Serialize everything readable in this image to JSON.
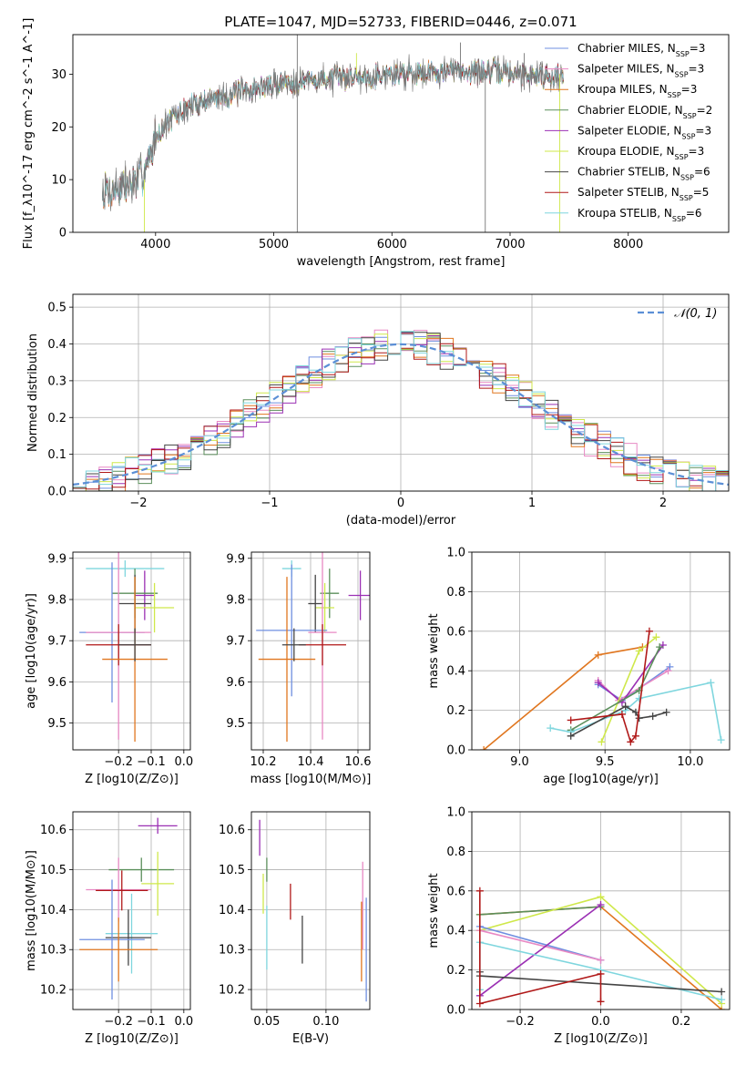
{
  "title": "PLATE=1047, MJD=52733, FIBERID=0446, z=0.071",
  "colors": {
    "Chabrier MILES": "#6f8fe0",
    "Salpeter MILES": "#e889c4",
    "Kroupa MILES": "#e0761f",
    "Chabrier ELODIE": "#5b8f5b",
    "Salpeter ELODIE": "#9b30b4",
    "Kroupa ELODIE": "#cfe84a",
    "Chabrier STELIB": "#444444",
    "Salpeter STELIB": "#b01818",
    "Kroupa STELIB": "#7fd6de",
    "gaussian": "#5b8fd6"
  },
  "chart_data": [
    {
      "id": "spectrum",
      "type": "line",
      "xlabel": "wavelength [Angstrom, rest frame]",
      "ylabel": "Flux [f_λ10^-17 erg cm^-2 s^-1 A^-1]",
      "xlim": [
        3300,
        8850
      ],
      "ylim": [
        0,
        37.5
      ],
      "xticks": [
        4000,
        5000,
        6000,
        7000,
        8000
      ],
      "yticks": [
        0,
        10,
        20,
        30
      ],
      "grid": false,
      "legend_position": "top-right",
      "legend": [
        {
          "model": "Chabrier MILES",
          "nssp": "3"
        },
        {
          "model": "Salpeter MILES",
          "nssp": "3"
        },
        {
          "model": "Kroupa MILES",
          "nssp": "3"
        },
        {
          "model": "Chabrier ELODIE",
          "nssp": "2"
        },
        {
          "model": "Salpeter ELODIE",
          "nssp": "3"
        },
        {
          "model": "Kroupa ELODIE",
          "nssp": "3"
        },
        {
          "model": "Chabrier STELIB",
          "nssp": "6"
        },
        {
          "model": "Salpeter STELIB",
          "nssp": "5"
        },
        {
          "model": "Kroupa STELIB",
          "nssp": "6"
        }
      ],
      "continuum": {
        "x": [
          3550,
          3700,
          3850,
          3950,
          4000,
          4100,
          4300,
          4500,
          4700,
          4900,
          5100,
          5400,
          5700,
          6000,
          6300,
          6600,
          6900,
          7200,
          7450
        ],
        "y": [
          7.5,
          8.5,
          9.5,
          14,
          18,
          21,
          24,
          25.5,
          26.5,
          27.5,
          28.5,
          29,
          29.5,
          30,
          30.5,
          30.5,
          30.5,
          30,
          29.5
        ]
      }
    },
    {
      "id": "residuals",
      "type": "line",
      "xlabel": "(data-model)/error",
      "ylabel": "Normed distribution",
      "xlim": [
        -2.5,
        2.5
      ],
      "ylim": [
        0,
        0.535
      ],
      "xticks": [
        -2,
        -1,
        0,
        1,
        2
      ],
      "yticks": [
        0.0,
        0.1,
        0.2,
        0.3,
        0.4,
        0.5
      ],
      "grid": true,
      "legend_position": "top-right",
      "legend": [
        "𝒩(0, 1)"
      ],
      "gaussian": {
        "mean": 0,
        "sigma": 1
      }
    },
    {
      "id": "age-vs-Z",
      "type": "scatter",
      "xlabel": "Z [log10(Z/Z⊙)]",
      "ylabel": "age  [log10(age/yr)]",
      "xlim": [
        -0.34,
        0.02
      ],
      "ylim": [
        9.435,
        9.915
      ],
      "xticks": [
        -0.2,
        -0.1,
        0.0
      ],
      "yticks": [
        9.5,
        9.6,
        9.7,
        9.8,
        9.9
      ],
      "grid": true,
      "points": [
        {
          "model": "Kroupa STELIB",
          "x": -0.18,
          "xerr": 0.12,
          "y": 9.875,
          "yerr": 0.02
        },
        {
          "model": "Salpeter ELODIE",
          "x": -0.12,
          "xerr": 0.03,
          "y": 9.81,
          "yerr": 0.06
        },
        {
          "model": "Chabrier ELODIE",
          "x": -0.15,
          "xerr": 0.07,
          "y": 9.815,
          "yerr": 0.06
        },
        {
          "model": "Kroupa ELODIE",
          "x": -0.09,
          "xerr": 0.06,
          "y": 9.78,
          "yerr": 0.06
        },
        {
          "model": "Chabrier STELIB",
          "x": -0.15,
          "xerr": 0.05,
          "y": 9.79,
          "yerr": 0.07
        },
        {
          "model": "Chabrier MILES",
          "x": -0.22,
          "xerr": 0.1,
          "y": 9.72,
          "yerr": 0.17
        },
        {
          "model": "Salpeter MILES",
          "x": -0.2,
          "xerr": 0.1,
          "y": 9.72,
          "yerr": 0.26
        },
        {
          "model": "Salpeter STELIB",
          "x": -0.2,
          "xerr": 0.1,
          "y": 9.69,
          "yerr": 0.05
        },
        {
          "model": "Kroupa MILES",
          "x": -0.15,
          "xerr": 0.1,
          "y": 9.655,
          "yerr": 0.2
        },
        {
          "model": "Chabrier STELIB",
          "x": -0.15,
          "xerr": 0.05,
          "y": 9.69,
          "yerr": 0.04
        }
      ]
    },
    {
      "id": "age-vs-mass",
      "type": "scatter",
      "xlabel": "mass [log10(M/M⊙)]",
      "ylabel": "",
      "xlim": [
        10.15,
        10.65
      ],
      "ylim": [
        9.435,
        9.915
      ],
      "xticks": [
        10.2,
        10.4,
        10.6
      ],
      "yticks": [
        9.5,
        9.6,
        9.7,
        9.8,
        9.9
      ],
      "grid": true,
      "points": [
        {
          "model": "Kroupa STELIB",
          "x": 10.32,
          "xerr": 0.04,
          "y": 9.875,
          "yerr": 0.02
        },
        {
          "model": "Salpeter ELODIE",
          "x": 10.61,
          "xerr": 0.05,
          "y": 9.81,
          "yerr": 0.06
        },
        {
          "model": "Chabrier ELODIE",
          "x": 10.48,
          "xerr": 0.04,
          "y": 9.815,
          "yerr": 0.06
        },
        {
          "model": "Kroupa ELODIE",
          "x": 10.46,
          "xerr": 0.04,
          "y": 9.78,
          "yerr": 0.06
        },
        {
          "model": "Chabrier STELIB",
          "x": 10.42,
          "xerr": 0.03,
          "y": 9.79,
          "yerr": 0.07
        },
        {
          "model": "Chabrier MILES",
          "x": 10.32,
          "xerr": 0.15,
          "y": 9.725,
          "yerr": 0.16
        },
        {
          "model": "Salpeter MILES",
          "x": 10.45,
          "xerr": 0.06,
          "y": 9.72,
          "yerr": 0.26
        },
        {
          "model": "Salpeter STELIB",
          "x": 10.45,
          "xerr": 0.1,
          "y": 9.69,
          "yerr": 0.05
        },
        {
          "model": "Kroupa MILES",
          "x": 10.3,
          "xerr": 0.12,
          "y": 9.655,
          "yerr": 0.2
        },
        {
          "model": "Chabrier STELIB",
          "x": 10.33,
          "xerr": 0.05,
          "y": 9.69,
          "yerr": 0.04
        }
      ]
    },
    {
      "id": "weight-vs-age",
      "type": "line",
      "xlabel": "age  [log10(age/yr)]",
      "ylabel": "mass weight",
      "xlim": [
        8.72,
        10.23
      ],
      "ylim": [
        0,
        1
      ],
      "xticks": [
        9.0,
        9.5,
        10.0
      ],
      "yticks": [
        0.0,
        0.2,
        0.4,
        0.6,
        0.8,
        1.0
      ],
      "grid": true,
      "series": [
        {
          "model": "Kroupa MILES",
          "x": [
            8.79,
            9.46,
            9.72
          ],
          "y": [
            0.0,
            0.48,
            0.52
          ]
        },
        {
          "model": "Chabrier MILES",
          "x": [
            9.46,
            9.6,
            9.88
          ],
          "y": [
            0.33,
            0.25,
            0.42
          ]
        },
        {
          "model": "Salpeter MILES",
          "x": [
            9.46,
            9.58,
            9.87
          ],
          "y": [
            0.35,
            0.25,
            0.4
          ]
        },
        {
          "model": "Salpeter ELODIE",
          "x": [
            9.46,
            9.6,
            9.84
          ],
          "y": [
            0.34,
            0.24,
            0.53
          ]
        },
        {
          "model": "Kroupa ELODIE",
          "x": [
            9.48,
            9.7,
            9.8
          ],
          "y": [
            0.04,
            0.5,
            0.57
          ]
        },
        {
          "model": "Chabrier ELODIE",
          "x": [
            9.3,
            9.7,
            9.82
          ],
          "y": [
            0.1,
            0.3,
            0.52
          ]
        },
        {
          "model": "Kroupa STELIB",
          "x": [
            9.18,
            9.3,
            9.62,
            9.7,
            10.12,
            10.18
          ],
          "y": [
            0.11,
            0.09,
            0.2,
            0.26,
            0.34,
            0.05
          ]
        },
        {
          "model": "Chabrier STELIB",
          "x": [
            9.3,
            9.62,
            9.68,
            9.7,
            9.78,
            9.86
          ],
          "y": [
            0.07,
            0.22,
            0.19,
            0.16,
            0.17,
            0.19
          ]
        },
        {
          "model": "Salpeter STELIB",
          "x": [
            9.3,
            9.6,
            9.65,
            9.68,
            9.76
          ],
          "y": [
            0.15,
            0.18,
            0.04,
            0.07,
            0.6
          ]
        }
      ]
    },
    {
      "id": "mass-vs-Z",
      "type": "scatter",
      "xlabel": "Z [log10(Z/Z⊙)]",
      "ylabel": "mass [log10(M/M⊙)]",
      "xlim": [
        -0.34,
        0.02
      ],
      "ylim": [
        10.15,
        10.645
      ],
      "xticks": [
        -0.2,
        -0.1,
        0.0
      ],
      "yticks": [
        10.2,
        10.3,
        10.4,
        10.5,
        10.6
      ],
      "grid": true,
      "points": [
        {
          "model": "Salpeter ELODIE",
          "x": -0.08,
          "xerr": 0.06,
          "y": 10.61,
          "yerr": 0.02
        },
        {
          "model": "Chabrier ELODIE",
          "x": -0.13,
          "xerr": 0.1,
          "y": 10.5,
          "yerr": 0.03
        },
        {
          "model": "Kroupa ELODIE",
          "x": -0.08,
          "xerr": 0.05,
          "y": 10.465,
          "yerr": 0.08
        },
        {
          "model": "Salpeter MILES",
          "x": -0.2,
          "xerr": 0.1,
          "y": 10.45,
          "yerr": 0.08
        },
        {
          "model": "Salpeter STELIB",
          "x": -0.19,
          "xerr": 0.08,
          "y": 10.448,
          "yerr": 0.05
        },
        {
          "model": "Kroupa STELIB",
          "x": -0.16,
          "xerr": 0.08,
          "y": 10.34,
          "yerr": 0.1
        },
        {
          "model": "Chabrier STELIB",
          "x": -0.17,
          "xerr": 0.07,
          "y": 10.33,
          "yerr": 0.07
        },
        {
          "model": "Chabrier MILES",
          "x": -0.22,
          "xerr": 0.1,
          "y": 10.325,
          "yerr": 0.15
        },
        {
          "model": "Kroupa MILES",
          "x": -0.2,
          "xerr": 0.12,
          "y": 10.3,
          "yerr": 0.08
        }
      ]
    },
    {
      "id": "mass-vs-ebv",
      "type": "scatter",
      "xlabel": "E(B-V)",
      "ylabel": "",
      "xlim": [
        0.037,
        0.137
      ],
      "ylim": [
        10.15,
        10.645
      ],
      "xticks": [
        0.05,
        0.1
      ],
      "yticks": [
        10.2,
        10.3,
        10.4,
        10.5,
        10.6
      ],
      "grid": true,
      "points": [
        {
          "model": "Salpeter ELODIE",
          "x": 0.044,
          "y": 10.58,
          "yerr": 0.045
        },
        {
          "model": "Chabrier ELODIE",
          "x": 0.05,
          "y": 10.5,
          "yerr": 0.03
        },
        {
          "model": "Kroupa ELODIE",
          "x": 0.047,
          "y": 10.44,
          "yerr": 0.05
        },
        {
          "model": "Salpeter STELIB",
          "x": 0.07,
          "y": 10.42,
          "yerr": 0.045
        },
        {
          "model": "Kroupa STELIB",
          "x": 0.05,
          "y": 10.33,
          "yerr": 0.08
        },
        {
          "model": "Chabrier STELIB",
          "x": 0.08,
          "y": 10.325,
          "yerr": 0.06
        },
        {
          "model": "Salpeter MILES",
          "x": 0.131,
          "y": 10.41,
          "yerr": 0.11
        },
        {
          "model": "Kroupa MILES",
          "x": 0.13,
          "y": 10.32,
          "yerr": 0.1
        },
        {
          "model": "Chabrier MILES",
          "x": 0.134,
          "y": 10.3,
          "yerr": 0.13
        }
      ]
    },
    {
      "id": "weight-vs-Z",
      "type": "line",
      "xlabel": "Z [log10(Z/Z⊙)]",
      "ylabel": "mass weight",
      "xlim": [
        -0.32,
        0.32
      ],
      "ylim": [
        0,
        1
      ],
      "xticks": [
        -0.2,
        0.0,
        0.2
      ],
      "yticks": [
        0.0,
        0.2,
        0.4,
        0.6,
        0.8,
        1.0
      ],
      "grid": true,
      "series": [
        {
          "model": "Kroupa MILES",
          "x": [
            -0.3,
            0.0,
            0.3
          ],
          "y": [
            0.48,
            0.52,
            0.0
          ]
        },
        {
          "model": "Chabrier ELODIE",
          "x": [
            -0.3,
            0.0
          ],
          "y": [
            0.48,
            0.52
          ]
        },
        {
          "model": "Kroupa ELODIE",
          "x": [
            -0.3,
            0.0,
            0.3
          ],
          "y": [
            0.4,
            0.57,
            0.03
          ]
        },
        {
          "model": "Chabrier MILES",
          "x": [
            -0.3,
            0.0
          ],
          "y": [
            0.42,
            0.25
          ]
        },
        {
          "model": "Salpeter MILES",
          "x": [
            -0.3,
            0.0
          ],
          "y": [
            0.4,
            0.25
          ]
        },
        {
          "model": "Salpeter ELODIE",
          "x": [
            -0.3,
            0.0
          ],
          "y": [
            0.07,
            0.53
          ]
        },
        {
          "model": "Kroupa STELIB",
          "x": [
            -0.3,
            -0.3,
            0.0,
            0.3
          ],
          "y": [
            0.1,
            0.34,
            0.2,
            0.05
          ]
        },
        {
          "model": "Chabrier STELIB",
          "x": [
            -0.3,
            -0.3,
            0.3
          ],
          "y": [
            0.19,
            0.17,
            0.09
          ]
        },
        {
          "model": "Salpeter STELIB",
          "x": [
            -0.3,
            -0.3,
            0.0,
            0.0
          ],
          "y": [
            0.6,
            0.03,
            0.18,
            0.04
          ]
        }
      ]
    }
  ]
}
